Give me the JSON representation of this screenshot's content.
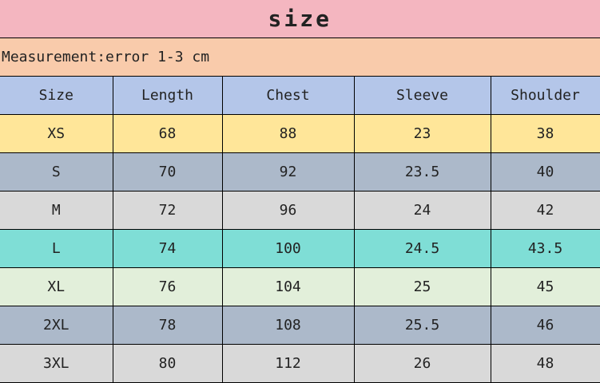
{
  "title": "size",
  "note": "Measurement:error 1-3 cm",
  "columns": [
    "Size",
    "Length",
    "Chest",
    "Sleeve",
    "Shoulder"
  ],
  "header_color": "#b4c6e9",
  "rows": [
    {
      "cells": [
        "XS",
        "68",
        "88",
        "23",
        "38"
      ],
      "color": "#ffe699"
    },
    {
      "cells": [
        "S",
        "70",
        "92",
        "23.5",
        "40"
      ],
      "color": "#acb9ca"
    },
    {
      "cells": [
        "M",
        "72",
        "96",
        "24",
        "42"
      ],
      "color": "#d9d9d9"
    },
    {
      "cells": [
        "L",
        "74",
        "100",
        "24.5",
        "43.5"
      ],
      "color": "#7fded6"
    },
    {
      "cells": [
        "XL",
        "76",
        "104",
        "25",
        "45"
      ],
      "color": "#e2efda"
    },
    {
      "cells": [
        "2XL",
        "78",
        "108",
        "25.5",
        "46"
      ],
      "color": "#acb9ca"
    },
    {
      "cells": [
        "3XL",
        "80",
        "112",
        "26",
        "48"
      ],
      "color": "#d9d9d9"
    }
  ]
}
